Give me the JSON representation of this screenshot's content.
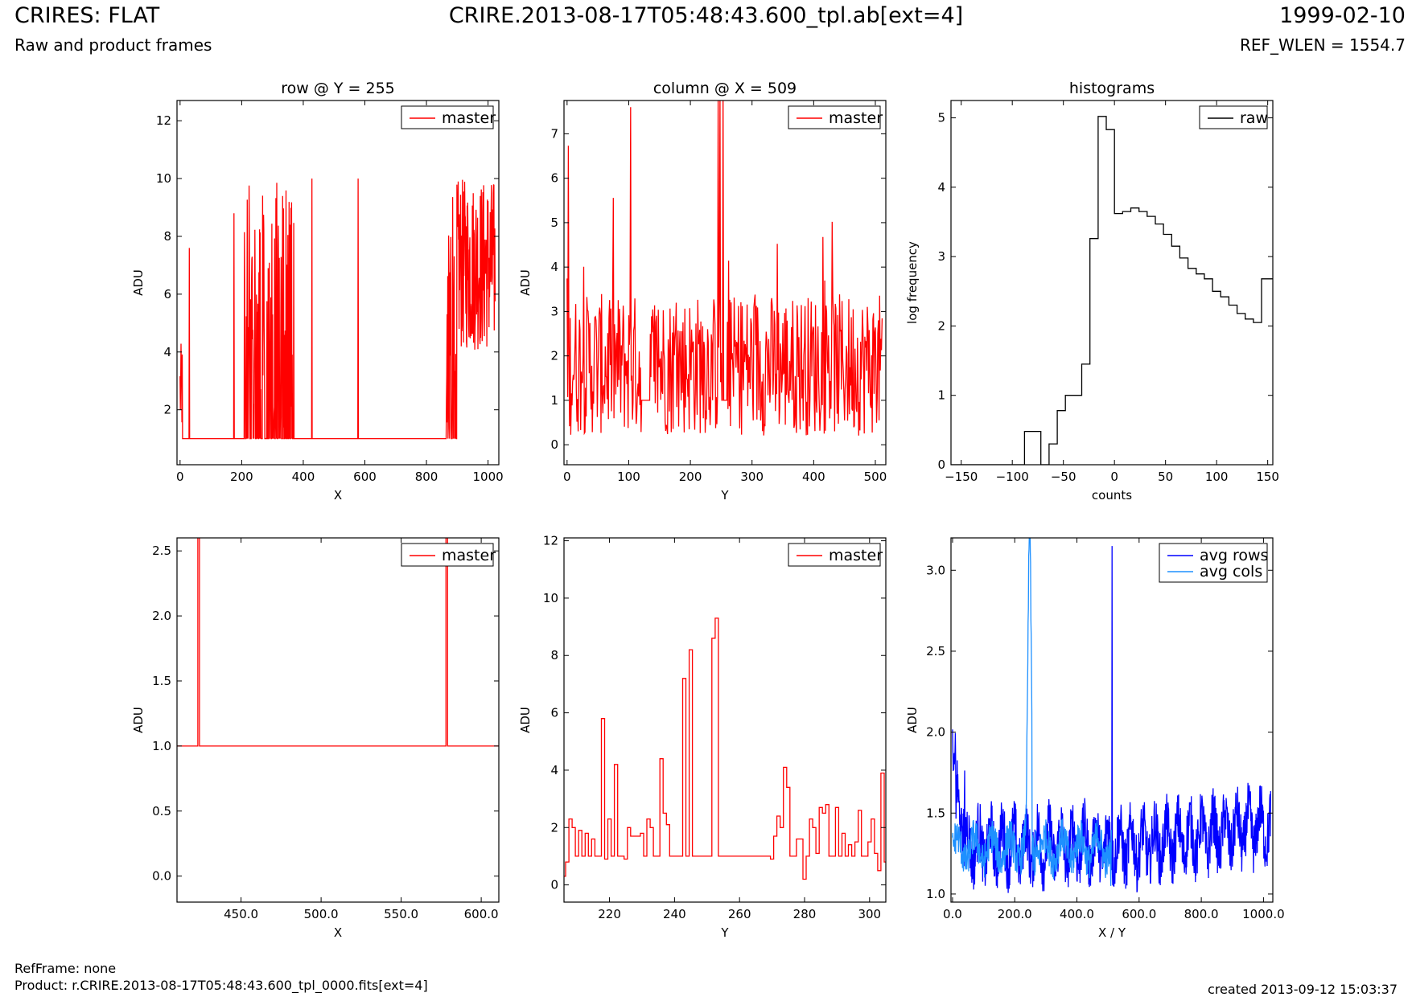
{
  "header": {
    "title": "CRIRES: FLAT",
    "subtitle": "Raw and product frames",
    "file": "CRIRE.2013-08-17T05:48:43.600_tpl.ab[ext=4]",
    "date": "1999-02-10",
    "ref_wlen": "REF_WLEN = 1554.7"
  },
  "footer": {
    "ref_frame": "RefFrame: none",
    "product": "Product: r.CRIRE.2013-08-17T05:48:43.600_tpl_0000.fits[ext=4]",
    "created": "created 2013-09-12 15:03:37"
  },
  "colors": {
    "master": "#ff0000",
    "raw": "#000000",
    "avg_rows": "#0000ff",
    "avg_cols": "#1e90ff"
  },
  "chart_data": [
    {
      "id": "p1",
      "type": "line",
      "title": "row @ Y = 255",
      "xlabel": "X",
      "ylabel": "ADU",
      "xlim": [
        -10,
        1035
      ],
      "ylim": [
        0.1,
        12.7
      ],
      "xticks": [
        0,
        200,
        400,
        600,
        800,
        1000
      ],
      "yticks": [
        2,
        4,
        6,
        8,
        10,
        12
      ],
      "legend": "top-right",
      "series": [
        {
          "name": "master",
          "color": "#ff0000",
          "kind": "row_full"
        }
      ]
    },
    {
      "id": "p2",
      "type": "line",
      "title": "column @ X = 509",
      "xlabel": "Y",
      "ylabel": "ADU",
      "xlim": [
        -5,
        517
      ],
      "ylim": [
        -0.45,
        7.75
      ],
      "xticks": [
        0,
        100,
        200,
        300,
        400,
        500
      ],
      "yticks": [
        0,
        1,
        2,
        3,
        4,
        5,
        6,
        7
      ],
      "legend": "top-right",
      "series": [
        {
          "name": "master",
          "color": "#ff0000",
          "kind": "col_full"
        }
      ]
    },
    {
      "id": "p3",
      "type": "line",
      "title": "histograms",
      "xlabel": "counts",
      "ylabel": "log frequency",
      "xlim": [
        -160,
        155
      ],
      "ylim": [
        0,
        5.25
      ],
      "xticks": [
        -150,
        -100,
        -50,
        0,
        50,
        100,
        150
      ],
      "yticks": [
        0,
        1,
        2,
        3,
        4,
        5
      ],
      "legend": "top-right",
      "series": [
        {
          "name": "raw",
          "color": "#000000",
          "kind": "step",
          "edges": [
            -160,
            -88,
            -72,
            -64,
            -56,
            -48,
            -32,
            -24,
            -16,
            -8,
            0,
            8,
            16,
            24,
            32,
            40,
            48,
            56,
            64,
            72,
            80,
            88,
            96,
            104,
            112,
            120,
            128,
            136,
            144,
            152,
            155
          ],
          "values": [
            0,
            0.48,
            0,
            0.3,
            0.78,
            1.0,
            1.45,
            3.26,
            5.02,
            4.83,
            3.62,
            3.65,
            3.7,
            3.65,
            3.58,
            3.47,
            3.32,
            3.15,
            2.98,
            2.83,
            2.75,
            2.68,
            2.5,
            2.42,
            2.3,
            2.18,
            2.1,
            2.05,
            2.68,
            2.68
          ]
        }
      ]
    },
    {
      "id": "p4",
      "type": "line",
      "title": "",
      "xlabel": "X",
      "ylabel": "ADU",
      "xlim": [
        410,
        611
      ],
      "ylim": [
        -0.2,
        2.6
      ],
      "xticks": [
        450,
        500,
        550,
        600
      ],
      "yticks": [
        0.0,
        0.5,
        1.0,
        1.5,
        2.0,
        2.5
      ],
      "tick_format": "%.1f",
      "legend": "top-right",
      "series": [
        {
          "name": "master",
          "color": "#ff0000",
          "kind": "xy",
          "x": [
            410,
            423,
            423,
            424,
            424,
            578,
            578,
            579,
            579,
            611
          ],
          "y": [
            1.0,
            1.0,
            2.65,
            2.65,
            1.0,
            1.0,
            2.65,
            2.65,
            1.0,
            1.0
          ]
        }
      ]
    },
    {
      "id": "p5",
      "type": "line",
      "title": "",
      "xlabel": "Y",
      "ylabel": "ADU",
      "xlim": [
        206,
        305
      ],
      "ylim": [
        -0.6,
        12.1
      ],
      "xticks": [
        220,
        240,
        260,
        280,
        300
      ],
      "yticks": [
        0,
        2,
        4,
        6,
        8,
        10,
        12
      ],
      "legend": "top-right",
      "series": [
        {
          "name": "master",
          "color": "#ff0000",
          "kind": "step_int",
          "x0": 206,
          "values": [
            0.3,
            0.8,
            2.3,
            2.0,
            1.0,
            1.9,
            1.0,
            1.8,
            1.0,
            1.6,
            1.0,
            1.0,
            5.8,
            0.9,
            2.3,
            1.0,
            4.2,
            1.0,
            1.0,
            0.9,
            2.0,
            1.7,
            1.7,
            1.7,
            1.8,
            1.0,
            2.3,
            2.0,
            1.0,
            1.0,
            4.4,
            2.5,
            2.1,
            1.0,
            1.0,
            1.0,
            1.0,
            7.2,
            1.0,
            8.2,
            1.0,
            1.0,
            1.0,
            1.0,
            1.0,
            1.0,
            8.6,
            9.3,
            1.0,
            1.0,
            1.0,
            1.0,
            1.0,
            1.0,
            1.0,
            1.0,
            1.0,
            1.0,
            1.0,
            1.0,
            1.0,
            1.0,
            1.0,
            1.0,
            0.9,
            1.7,
            2.4,
            2.0,
            4.1,
            3.4,
            1.0,
            1.0,
            1.6,
            1.6,
            0.2,
            1.0,
            2.3,
            2.0,
            1.1,
            2.7,
            2.5,
            2.8,
            1.0,
            1.0,
            2.7,
            1.0,
            1.8,
            1.0,
            1.4,
            1.0,
            1.5,
            2.6,
            1.0,
            1.0,
            1.5,
            2.3,
            1.1,
            0.5,
            3.9,
            0.8,
            0.7
          ]
        }
      ]
    },
    {
      "id": "p6",
      "type": "line",
      "title": "",
      "xlabel": "X / Y",
      "ylabel": "ADU",
      "xlim": [
        -5,
        1030
      ],
      "ylim": [
        0.95,
        3.2
      ],
      "xticks": [
        0,
        200,
        400,
        600,
        800,
        1000
      ],
      "yticks": [
        1.0,
        1.5,
        2.0,
        2.5,
        3.0
      ],
      "tick_format": "%.1f",
      "legend": "top-right",
      "series": [
        {
          "name": "avg rows",
          "color": "#0000ff",
          "kind": "avg_rows"
        },
        {
          "name": "avg cols",
          "color": "#1e90ff",
          "kind": "avg_cols"
        }
      ]
    }
  ]
}
